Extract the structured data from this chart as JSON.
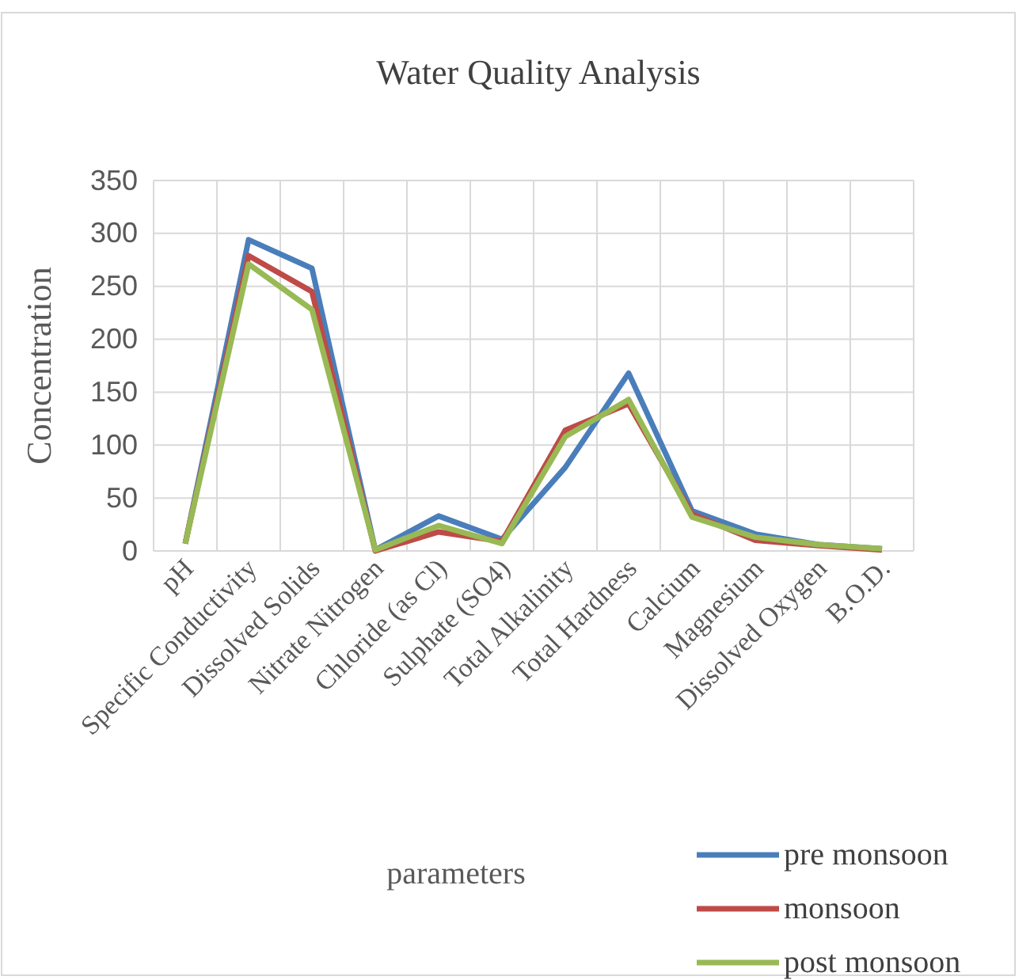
{
  "chart_data": {
    "type": "line",
    "title": "Water Quality Analysis",
    "xlabel": "parameters",
    "ylabel": "Concentration",
    "categories": [
      "pH",
      "Specific Conductivity",
      "Dissolved Solids",
      "Nitrate Nitrogen",
      "Chloride (as Cl)",
      "Sulphate (SO4)",
      "Total Alkalinity",
      "Total Hardness",
      "Calcium",
      "Magnesium",
      "Dissolved Oxygen",
      "B.O.D."
    ],
    "series": [
      {
        "name": "pre monsoon",
        "color": "#4a7ebb",
        "values": [
          7,
          294,
          267,
          1,
          33,
          11,
          79,
          168,
          38,
          16,
          6,
          2
        ]
      },
      {
        "name": "monsoon",
        "color": "#be4b48",
        "values": [
          7,
          279,
          245,
          0,
          18,
          9,
          114,
          139,
          35,
          10,
          5,
          1
        ]
      },
      {
        "name": "post monsoon",
        "color": "#98b954",
        "values": [
          7,
          271,
          228,
          1,
          24,
          7,
          108,
          143,
          32,
          13,
          6,
          2
        ]
      }
    ],
    "ylim": [
      0,
      350
    ],
    "yticks": [
      0,
      50,
      100,
      150,
      200,
      250,
      300,
      350
    ],
    "grid": true,
    "legend": "bottom right",
    "marker": "none",
    "line_style": "solid"
  }
}
